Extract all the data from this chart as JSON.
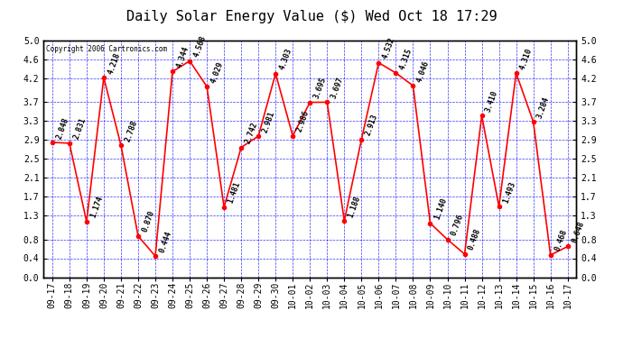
{
  "title": "Daily Solar Energy Value ($) Wed Oct 18 17:29",
  "copyright": "Copyright 2006 Cartronics.com",
  "labels": [
    "09-17",
    "09-18",
    "09-19",
    "09-20",
    "09-21",
    "09-22",
    "09-23",
    "09-24",
    "09-25",
    "09-26",
    "09-27",
    "09-28",
    "09-29",
    "09-30",
    "10-01",
    "10-02",
    "10-03",
    "10-04",
    "10-05",
    "10-06",
    "10-07",
    "10-08",
    "10-09",
    "10-10",
    "10-11",
    "10-12",
    "10-13",
    "10-14",
    "10-15",
    "10-16",
    "10-17"
  ],
  "values": [
    2.848,
    2.831,
    1.174,
    4.218,
    2.788,
    0.87,
    0.444,
    4.344,
    4.568,
    4.029,
    1.481,
    2.742,
    2.981,
    4.303,
    2.986,
    3.695,
    3.697,
    1.188,
    2.913,
    4.532,
    4.315,
    4.046,
    1.14,
    0.796,
    0.488,
    3.41,
    1.493,
    4.31,
    3.284,
    0.468,
    0.648
  ],
  "line_color": "red",
  "marker_color": "red",
  "bg_color": "white",
  "plot_bg_color": "white",
  "grid_color": "blue",
  "text_color": "black",
  "border_color": "black",
  "ylim": [
    0.0,
    5.0
  ],
  "yticks": [
    0.0,
    0.4,
    0.8,
    1.3,
    1.7,
    2.1,
    2.5,
    2.9,
    3.3,
    3.7,
    4.2,
    4.6,
    5.0
  ],
  "title_fontsize": 11,
  "label_fontsize": 7,
  "annotation_fontsize": 6,
  "figwidth": 6.9,
  "figheight": 3.75,
  "dpi": 100
}
